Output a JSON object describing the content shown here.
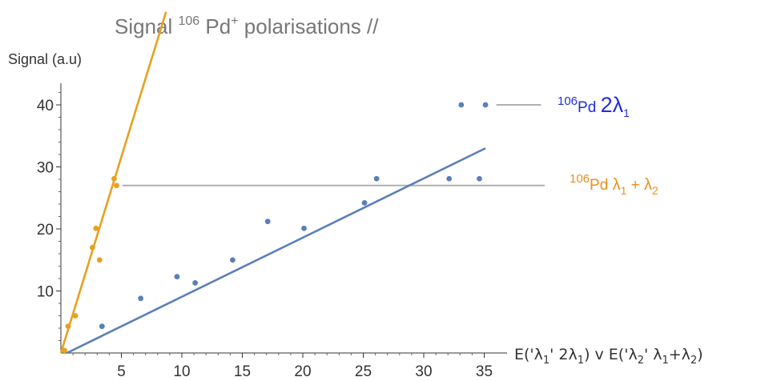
{
  "title": {
    "pre": "Signal ",
    "sup_mass": "106",
    "element": " Pd",
    "sup_charge": "+",
    "post": " polarisations //"
  },
  "chart_data": {
    "type": "scatter",
    "xlabel": "E('λ1' 2λ1) v E('λ2' λ1+λ2)",
    "ylabel": "Signal (a.u)",
    "xlim": [
      0,
      36
    ],
    "ylim": [
      0,
      44
    ],
    "x_ticks": [
      5,
      10,
      15,
      20,
      25,
      30,
      35
    ],
    "y_ticks": [
      10,
      20,
      30,
      40
    ],
    "series": [
      {
        "name": "106Pd 2λ1",
        "color": "#5a7fba",
        "points": [
          [
            3.4,
            4.3
          ],
          [
            6.6,
            8.8
          ],
          [
            9.6,
            12.3
          ],
          [
            11.1,
            11.3
          ],
          [
            14.2,
            15.0
          ],
          [
            17.1,
            21.2
          ],
          [
            20.1,
            20.1
          ],
          [
            25.1,
            24.2
          ],
          [
            26.1,
            28.1
          ],
          [
            32.1,
            28.1
          ],
          [
            33.1,
            40.0
          ],
          [
            34.6,
            28.1
          ],
          [
            35.1,
            40.0
          ]
        ],
        "fit": {
          "from": [
            0.5,
            0
          ],
          "to": [
            35.1,
            33
          ]
        }
      },
      {
        "name": "106Pd λ1 + λ2",
        "color": "#e8a021",
        "points": [
          [
            0.3,
            0.4
          ],
          [
            0.6,
            4.3
          ],
          [
            1.2,
            6.0
          ],
          [
            2.6,
            17.0
          ],
          [
            2.9,
            20.1
          ],
          [
            3.2,
            15.0
          ],
          [
            4.4,
            28.1
          ],
          [
            4.6,
            27.0
          ]
        ],
        "fit": {
          "from": [
            0,
            0
          ],
          "to": [
            8.7,
            55
          ]
        }
      }
    ],
    "reference_lines": [
      {
        "y": 27.0,
        "x_from": 5.1,
        "x_to": 40.0,
        "color": "#b0b0b0"
      },
      {
        "y": 40.0,
        "x_from": 36.0,
        "x_to": 39.7,
        "color": "#b0b0b0"
      }
    ],
    "annotations": {
      "blue": {
        "mass": "106",
        "el": "Pd",
        "label": "2λ",
        "sub": "1"
      },
      "orange": {
        "mass": "106",
        "el": "Pd",
        "l1": "λ",
        "s1": "1",
        "plus": " + ",
        "l2": "λ",
        "s2": "2"
      }
    }
  }
}
